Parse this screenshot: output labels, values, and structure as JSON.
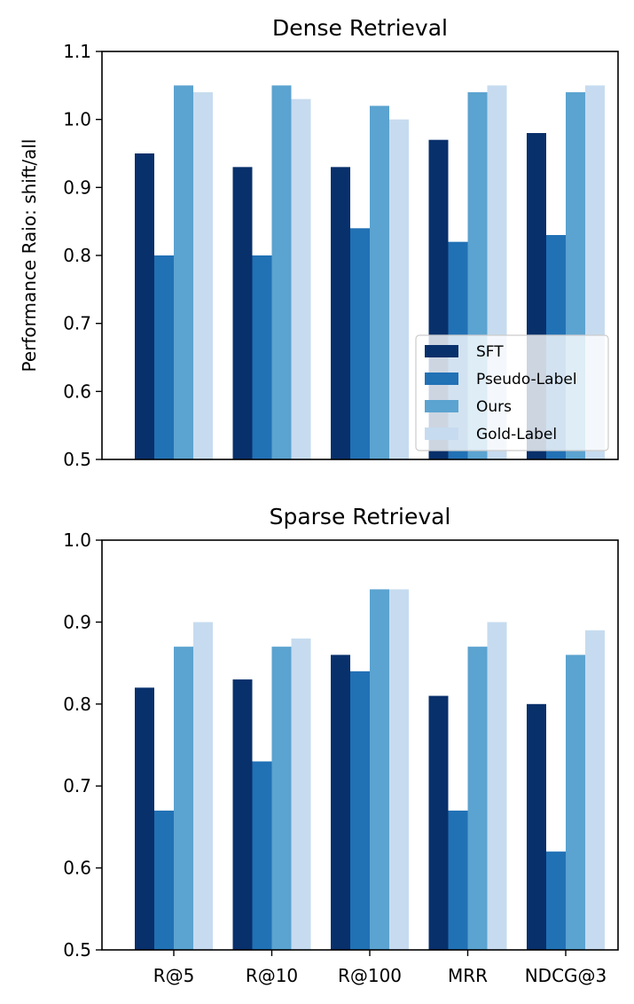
{
  "figure": {
    "ylabel": "Performance Raio: shift/all"
  },
  "colors": {
    "SFT": "#08306b",
    "Pseudo-Label": "#2171b5",
    "Ours": "#5ba3d0",
    "Gold-Label": "#c6dbef"
  },
  "chart_data": [
    {
      "type": "bar",
      "title": "Dense Retrieval",
      "xlabel": "",
      "ylabel": "Performance Raio: shift/all",
      "categories": [
        "R@5",
        "R@10",
        "R@100",
        "MRR",
        "NDCG@3"
      ],
      "ylim": [
        0.5,
        1.1
      ],
      "yticks": [
        "0.5",
        "0.6",
        "0.7",
        "0.8",
        "0.9",
        "1.0",
        "1.1"
      ],
      "show_x_tick_labels": false,
      "grid": false,
      "legend": {
        "position": "lower-right",
        "entries": [
          "SFT",
          "Pseudo-Label",
          "Ours",
          "Gold-Label"
        ]
      },
      "series": [
        {
          "name": "SFT",
          "values": [
            0.95,
            0.93,
            0.93,
            0.97,
            0.98
          ]
        },
        {
          "name": "Pseudo-Label",
          "values": [
            0.8,
            0.8,
            0.84,
            0.82,
            0.83
          ]
        },
        {
          "name": "Ours",
          "values": [
            1.05,
            1.05,
            1.02,
            1.04,
            1.04
          ]
        },
        {
          "name": "Gold-Label",
          "values": [
            1.04,
            1.03,
            1.0,
            1.05,
            1.05
          ]
        }
      ]
    },
    {
      "type": "bar",
      "title": "Sparse Retrieval",
      "xlabel": "",
      "ylabel": "",
      "categories": [
        "R@5",
        "R@10",
        "R@100",
        "MRR",
        "NDCG@3"
      ],
      "ylim": [
        0.5,
        1.0
      ],
      "yticks": [
        "0.5",
        "0.6",
        "0.7",
        "0.8",
        "0.9",
        "1.0"
      ],
      "show_x_tick_labels": true,
      "grid": false,
      "series": [
        {
          "name": "SFT",
          "values": [
            0.82,
            0.83,
            0.86,
            0.81,
            0.8
          ]
        },
        {
          "name": "Pseudo-Label",
          "values": [
            0.67,
            0.73,
            0.84,
            0.67,
            0.62
          ]
        },
        {
          "name": "Ours",
          "values": [
            0.87,
            0.87,
            0.94,
            0.87,
            0.86
          ]
        },
        {
          "name": "Gold-Label",
          "values": [
            0.9,
            0.88,
            0.94,
            0.9,
            0.89
          ]
        }
      ]
    }
  ]
}
